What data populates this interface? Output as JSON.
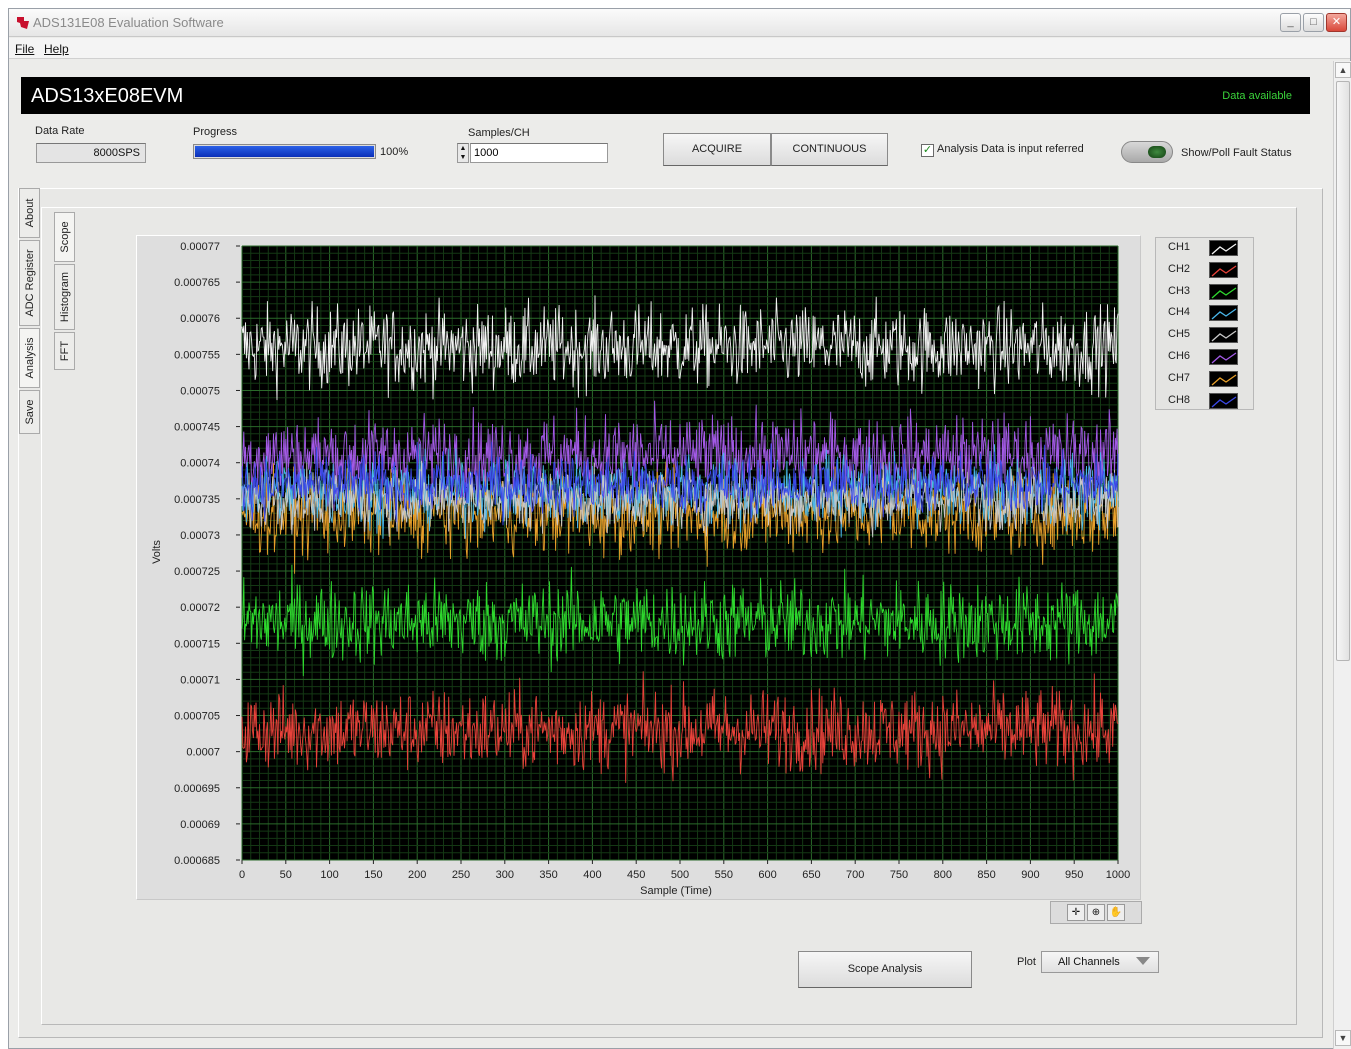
{
  "window": {
    "title": "ADS131E08 Evaluation Software"
  },
  "menu": {
    "file": "File",
    "help": "Help"
  },
  "banner": {
    "title": "ADS13xE08EVM",
    "status": "Data available",
    "status_color": "#3bd43b"
  },
  "controls": {
    "data_rate_label": "Data Rate",
    "data_rate_value": "8000SPS",
    "progress_label": "Progress",
    "progress_value": 100,
    "progress_text": "100%",
    "samples_label": "Samples/CH",
    "samples_value": "1000",
    "acquire_label": "ACQUIRE",
    "continuous_label": "CONTINUOUS",
    "analysis_input_referred_label": "Analysis Data is input referred",
    "analysis_input_referred_checked": true,
    "fault_status_label": "Show/Poll Fault Status"
  },
  "side_tabs": [
    "About",
    "ADC Register",
    "Analysis",
    "Save"
  ],
  "sub_tabs": [
    "Scope",
    "Histogram",
    "FFT"
  ],
  "bottom": {
    "scope_analysis_label": "Scope Analysis",
    "plot_label": "Plot",
    "plot_value": "All Channels"
  },
  "chart_data": {
    "type": "line",
    "xlabel": "Sample (Time)",
    "ylabel": "Volts",
    "xlim": [
      0,
      1000
    ],
    "ylim": [
      0.000685,
      0.00077
    ],
    "x_ticks": [
      "0",
      "50",
      "100",
      "150",
      "200",
      "250",
      "300",
      "350",
      "400",
      "450",
      "500",
      "550",
      "600",
      "650",
      "700",
      "750",
      "800",
      "850",
      "900",
      "950",
      "1000"
    ],
    "y_ticks": [
      "0.00077",
      "0.000765",
      "0.00076",
      "0.000755",
      "0.00075",
      "0.000745",
      "0.00074",
      "0.000735",
      "0.00073",
      "0.000725",
      "0.00072",
      "0.000715",
      "0.00071",
      "0.000705",
      "0.0007",
      "0.000695",
      "0.00069",
      "0.000685"
    ],
    "grid": true,
    "background": "#000000",
    "legend_position": "right",
    "series": [
      {
        "name": "CH1",
        "color": "#f2f2f2",
        "mean": 0.000756,
        "noise": 4e-06
      },
      {
        "name": "CH2",
        "color": "#e8423a",
        "mean": 0.000703,
        "noise": 4e-06
      },
      {
        "name": "CH3",
        "color": "#2ed82e",
        "mean": 0.000718,
        "noise": 4e-06
      },
      {
        "name": "CH4",
        "color": "#49b6ea",
        "mean": 0.000736,
        "noise": 3.5e-06
      },
      {
        "name": "CH5",
        "color": "#c8c8c8",
        "mean": 0.000735,
        "noise": 3e-06
      },
      {
        "name": "CH6",
        "color": "#a35ae6",
        "mean": 0.000741,
        "noise": 4e-06
      },
      {
        "name": "CH7",
        "color": "#e8a02a",
        "mean": 0.000733,
        "noise": 4e-06
      },
      {
        "name": "CH8",
        "color": "#3a48e8",
        "mean": 0.000737,
        "noise": 3e-06
      }
    ]
  }
}
